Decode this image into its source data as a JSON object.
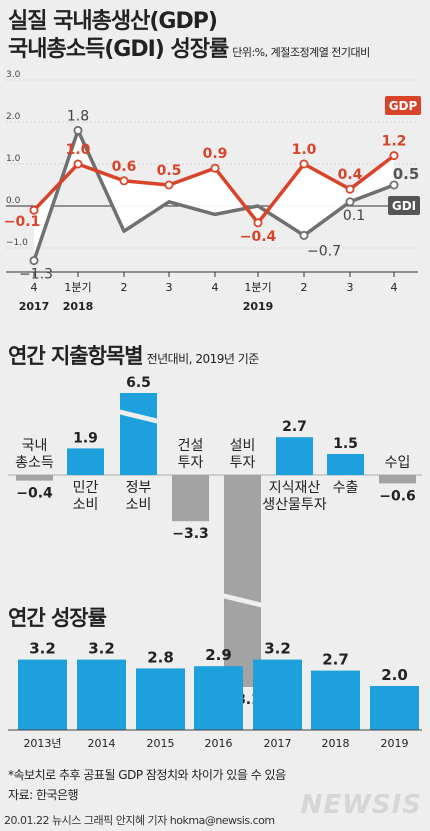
{
  "header": {
    "title_line1": "실질 국내총생산(GDP)",
    "title_line2": "국내총소득(GDI) 성장률",
    "unit_note": "단위:%, 계절조정계열 전기대비"
  },
  "colors": {
    "gdp": "#d9432a",
    "gdi": "#707070",
    "bar_blue": "#1ea0dc",
    "bar_gray": "#a3a3a3"
  },
  "chart_data": [
    {
      "type": "line",
      "categories": [
        "4",
        "1분기",
        "2",
        "3",
        "4",
        "1분기",
        "2",
        "3",
        "4"
      ],
      "year_labels": [
        {
          "index": 0,
          "text": "2017"
        },
        {
          "index": 1,
          "text": "2018"
        },
        {
          "index": 5,
          "text": "2019"
        }
      ],
      "series": [
        {
          "name": "GDP",
          "values": [
            -0.1,
            1.0,
            0.6,
            0.5,
            0.9,
            -0.4,
            1.0,
            0.4,
            1.2
          ],
          "labels": [
            "−0.1",
            "1.0",
            "0.6",
            "0.5",
            "0.9",
            "−0.4",
            "1.0",
            "0.4",
            "1.2"
          ]
        },
        {
          "name": "GDI",
          "values": [
            -1.3,
            1.8,
            -0.6,
            0.1,
            -0.2,
            0.0,
            -0.7,
            0.1,
            0.5
          ],
          "labels": [
            "−1.3",
            "1.8",
            "",
            "",
            "",
            "",
            "−0.7",
            "0.1",
            "0.5"
          ]
        }
      ],
      "ylim": [
        -1.5,
        3.0
      ],
      "yticks": [
        "3.0",
        "2.0",
        "1.0",
        "0.0",
        "−1.0"
      ],
      "grid": true,
      "legend": "right"
    },
    {
      "type": "bar",
      "title": "연간 지출항목별",
      "subtitle": "전년대비, 2019년 기준",
      "categories": [
        "국내\n총소득",
        "민간\n소비",
        "정부\n소비",
        "건설\n투자",
        "설비\n투자",
        "지식재산\n생산물투자",
        "수출",
        "수입"
      ],
      "values": [
        -0.4,
        1.9,
        6.5,
        -3.3,
        -8.1,
        2.7,
        1.5,
        -0.6
      ],
      "labels": [
        "−0.4",
        "1.9",
        "6.5",
        "−3.3",
        "−8.1",
        "2.7",
        "1.5",
        "−0.6"
      ],
      "broken_axis": [
        "정부\n소비",
        "설비\n투자"
      ]
    },
    {
      "type": "bar",
      "title": "연간 성장률",
      "categories": [
        "2013년",
        "2014",
        "2015",
        "2016",
        "2017",
        "2018",
        "2019"
      ],
      "values": [
        3.2,
        3.2,
        2.8,
        2.9,
        3.2,
        2.7,
        2.0
      ],
      "labels": [
        "3.2",
        "3.2",
        "2.8",
        "2.9",
        "3.2",
        "2.7",
        "2.0"
      ]
    }
  ],
  "footer": {
    "note": "*속보치로 추후 공표될 GDP 잠정치와 차이가 있을 수 있음",
    "source": "자료: 한국은행",
    "credit": "20.01.22 뉴시스 그래픽 안지혜 기자 hokma@newsis.com",
    "watermark": "NEWSIS"
  }
}
